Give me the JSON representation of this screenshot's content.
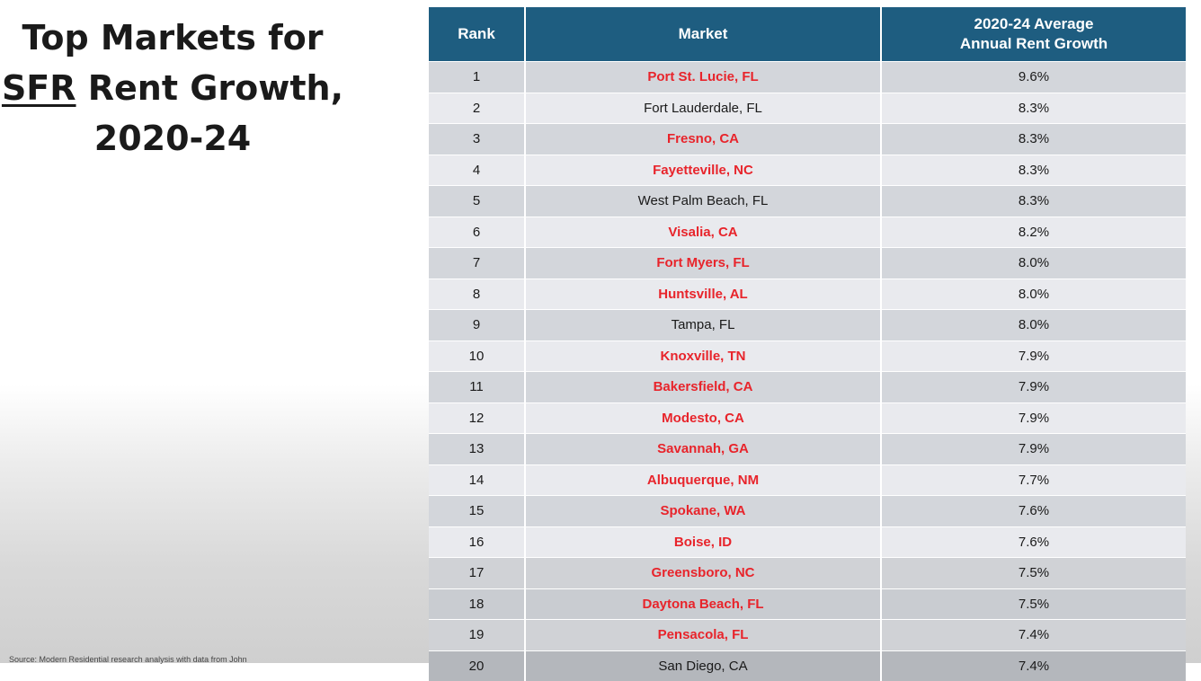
{
  "title": {
    "line1": "Top Markets for",
    "line2_underlined": "SFR",
    "line2_rest": " Rent Growth,",
    "line3": "2020-24"
  },
  "footnote": "Source: Modern Residential research analysis with data from John",
  "table": {
    "headers": {
      "rank": "Rank",
      "market": "Market",
      "growth_line1": "2020-24 Average",
      "growth_line2": "Annual Rent Growth"
    },
    "highlight_color": "#e8242b",
    "header_color": "#1e5d80",
    "rows": [
      {
        "rank": "1",
        "market": "Port St. Lucie, FL",
        "growth": "9.6%",
        "highlighted": true
      },
      {
        "rank": "2",
        "market": "Fort Lauderdale, FL",
        "growth": "8.3%",
        "highlighted": false
      },
      {
        "rank": "3",
        "market": "Fresno, CA",
        "growth": "8.3%",
        "highlighted": true
      },
      {
        "rank": "4",
        "market": "Fayetteville, NC",
        "growth": "8.3%",
        "highlighted": true
      },
      {
        "rank": "5",
        "market": "West Palm Beach, FL",
        "growth": "8.3%",
        "highlighted": false
      },
      {
        "rank": "6",
        "market": "Visalia, CA",
        "growth": "8.2%",
        "highlighted": true
      },
      {
        "rank": "7",
        "market": "Fort Myers, FL",
        "growth": "8.0%",
        "highlighted": true
      },
      {
        "rank": "8",
        "market": "Huntsville, AL",
        "growth": "8.0%",
        "highlighted": true
      },
      {
        "rank": "9",
        "market": "Tampa, FL",
        "growth": "8.0%",
        "highlighted": false
      },
      {
        "rank": "10",
        "market": "Knoxville, TN",
        "growth": "7.9%",
        "highlighted": true
      },
      {
        "rank": "11",
        "market": "Bakersfield, CA",
        "growth": "7.9%",
        "highlighted": true
      },
      {
        "rank": "12",
        "market": "Modesto, CA",
        "growth": "7.9%",
        "highlighted": true
      },
      {
        "rank": "13",
        "market": "Savannah, GA",
        "growth": "7.9%",
        "highlighted": true
      },
      {
        "rank": "14",
        "market": "Albuquerque, NM",
        "growth": "7.7%",
        "highlighted": true
      },
      {
        "rank": "15",
        "market": "Spokane, WA",
        "growth": "7.6%",
        "highlighted": true
      },
      {
        "rank": "16",
        "market": "Boise, ID",
        "growth": "7.6%",
        "highlighted": true
      },
      {
        "rank": "17",
        "market": "Greensboro, NC",
        "growth": "7.5%",
        "highlighted": true
      },
      {
        "rank": "18",
        "market": "Daytona Beach, FL",
        "growth": "7.5%",
        "highlighted": true
      },
      {
        "rank": "19",
        "market": "Pensacola, FL",
        "growth": "7.4%",
        "highlighted": true
      },
      {
        "rank": "20",
        "market": "San Diego, CA",
        "growth": "7.4%",
        "highlighted": false
      }
    ]
  }
}
